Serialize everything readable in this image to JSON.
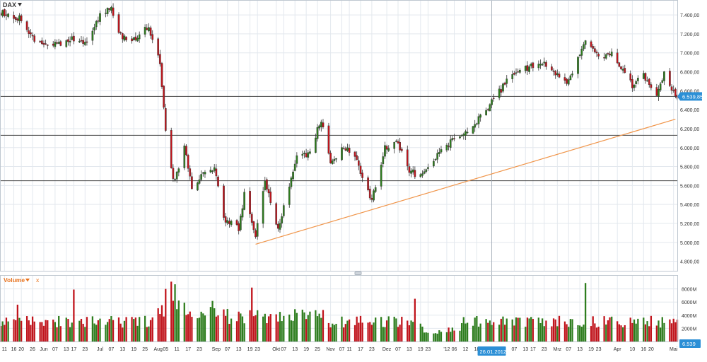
{
  "header": {
    "instrument": "DAX",
    "volume_label": "Volume",
    "volume_close": "x",
    "price_badge": "6.539,85",
    "volume_badge": "6.539",
    "date_badge": "26.01.2012"
  },
  "colors": {
    "up": "#2e7d1e",
    "down": "#c0141c",
    "grid": "#e3e8ee",
    "trend": "#f0954a",
    "badge": "#2b8fd6",
    "vol_label": "#e8731f",
    "hline": "#444444"
  },
  "chart_data": [
    {
      "type": "candlestick",
      "ylim": [
        4700,
        7550
      ],
      "yticks": [
        4800,
        5000,
        5200,
        5400,
        5600,
        5800,
        6000,
        6200,
        6400,
        6600,
        6800,
        7000,
        7200,
        7400
      ],
      "ytick_labels": [
        "4.800,00",
        "5.000,00",
        "5.200,00",
        "5.400,00",
        "5.600,00",
        "5.800,00",
        "6.000,00",
        "6.200,00",
        "6.400,00",
        "6.600,00",
        "6.800,00",
        "7.000,00",
        "7.200,00",
        "7.400,00"
      ],
      "horizontal_levels": [
        6540,
        6130,
        5650
      ],
      "trendline": {
        "from": {
          "date": "2011-09-22",
          "value": 4980
        },
        "to": {
          "date": "2012-05-03",
          "value": 6300
        }
      },
      "anchors": [
        {
          "date": "2011-05-09",
          "value": 7420
        },
        {
          "date": "2011-05-20",
          "value": 7360
        },
        {
          "date": "2011-05-27",
          "value": 7130
        },
        {
          "date": "2011-06-03",
          "value": 7110
        },
        {
          "date": "2011-06-10",
          "value": 7090
        },
        {
          "date": "2011-06-17",
          "value": 7150
        },
        {
          "date": "2011-06-24",
          "value": 7120
        },
        {
          "date": "2011-07-01",
          "value": 7400
        },
        {
          "date": "2011-07-07",
          "value": 7480
        },
        {
          "date": "2011-07-12",
          "value": 7180
        },
        {
          "date": "2011-07-19",
          "value": 7130
        },
        {
          "date": "2011-07-25",
          "value": 7300
        },
        {
          "date": "2011-07-29",
          "value": 7170
        },
        {
          "date": "2011-08-02",
          "value": 6900
        },
        {
          "date": "2011-08-05",
          "value": 6200
        },
        {
          "date": "2011-08-09",
          "value": 5650
        },
        {
          "date": "2011-08-12",
          "value": 5800
        },
        {
          "date": "2011-08-15",
          "value": 6050
        },
        {
          "date": "2011-08-19",
          "value": 5550
        },
        {
          "date": "2011-08-24",
          "value": 5700
        },
        {
          "date": "2011-08-31",
          "value": 5800
        },
        {
          "date": "2011-09-05",
          "value": 5250
        },
        {
          "date": "2011-09-09",
          "value": 5200
        },
        {
          "date": "2011-09-13",
          "value": 5150
        },
        {
          "date": "2011-09-16",
          "value": 5500
        },
        {
          "date": "2011-09-22",
          "value": 5050
        },
        {
          "date": "2011-09-27",
          "value": 5650
        },
        {
          "date": "2011-10-04",
          "value": 5150
        },
        {
          "date": "2011-10-10",
          "value": 5600
        },
        {
          "date": "2011-10-14",
          "value": 5900
        },
        {
          "date": "2011-10-21",
          "value": 5950
        },
        {
          "date": "2011-10-27",
          "value": 6300
        },
        {
          "date": "2011-11-01",
          "value": 5850
        },
        {
          "date": "2011-11-08",
          "value": 6000
        },
        {
          "date": "2011-11-14",
          "value": 5900
        },
        {
          "date": "2011-11-23",
          "value": 5450
        },
        {
          "date": "2011-11-30",
          "value": 6000
        },
        {
          "date": "2011-12-07",
          "value": 6050
        },
        {
          "date": "2011-12-13",
          "value": 5750
        },
        {
          "date": "2011-12-19",
          "value": 5700
        },
        {
          "date": "2011-12-27",
          "value": 5900
        },
        {
          "date": "2012-01-06",
          "value": 6100
        },
        {
          "date": "2012-01-16",
          "value": 6220
        },
        {
          "date": "2012-01-25",
          "value": 6450
        },
        {
          "date": "2012-02-03",
          "value": 6700
        },
        {
          "date": "2012-02-10",
          "value": 6800
        },
        {
          "date": "2012-02-20",
          "value": 6900
        },
        {
          "date": "2012-02-27",
          "value": 6850
        },
        {
          "date": "2012-03-06",
          "value": 6650
        },
        {
          "date": "2012-03-16",
          "value": 7150
        },
        {
          "date": "2012-03-23",
          "value": 6950
        },
        {
          "date": "2012-03-30",
          "value": 7000
        },
        {
          "date": "2012-04-10",
          "value": 6650
        },
        {
          "date": "2012-04-16",
          "value": 6750
        },
        {
          "date": "2012-04-23",
          "value": 6550
        },
        {
          "date": "2012-04-27",
          "value": 6800
        },
        {
          "date": "2012-05-03",
          "value": 6540
        }
      ]
    },
    {
      "type": "bar",
      "series_role": "volume",
      "ylim": [
        0,
        10000
      ],
      "yticks": [
        2000,
        4000,
        6000,
        8000
      ],
      "ytick_labels": [
        "2000M",
        "4000M",
        "6000M",
        "8000M"
      ],
      "spikes": [
        {
          "date": "2011-05-18",
          "value": 5600
        },
        {
          "date": "2011-06-17",
          "value": 7900
        },
        {
          "date": "2011-08-05",
          "value": 8000
        },
        {
          "date": "2011-08-08",
          "value": 9100
        },
        {
          "date": "2011-08-10",
          "value": 8700
        },
        {
          "date": "2011-09-20",
          "value": 8200
        },
        {
          "date": "2011-12-16",
          "value": 6500
        },
        {
          "date": "2012-03-16",
          "value": 8900
        }
      ]
    }
  ],
  "x_axis": {
    "start": "2011-05-09",
    "end": "2012-05-04",
    "ticks": [
      {
        "date": "2011-05-11",
        "label": "11"
      },
      {
        "date": "2011-05-16",
        "label": "16"
      },
      {
        "date": "2011-05-20",
        "label": "20"
      },
      {
        "date": "2011-05-26",
        "label": "26"
      },
      {
        "date": "2011-06-01",
        "label": "Jun"
      },
      {
        "date": "2011-06-07",
        "label": "07"
      },
      {
        "date": "2011-06-13",
        "label": "13"
      },
      {
        "date": "2011-06-17",
        "label": "17"
      },
      {
        "date": "2011-06-23",
        "label": "23"
      },
      {
        "date": "2011-07-01",
        "label": "Jul"
      },
      {
        "date": "2011-07-07",
        "label": "07"
      },
      {
        "date": "2011-07-13",
        "label": "13"
      },
      {
        "date": "2011-07-19",
        "label": "19"
      },
      {
        "date": "2011-07-25",
        "label": "25"
      },
      {
        "date": "2011-08-01",
        "label": "Aug"
      },
      {
        "date": "2011-08-05",
        "label": "05"
      },
      {
        "date": "2011-08-11",
        "label": "11"
      },
      {
        "date": "2011-08-17",
        "label": "17"
      },
      {
        "date": "2011-08-23",
        "label": "23"
      },
      {
        "date": "2011-09-01",
        "label": "Sep"
      },
      {
        "date": "2011-09-07",
        "label": "07"
      },
      {
        "date": "2011-09-13",
        "label": "13"
      },
      {
        "date": "2011-09-19",
        "label": "19"
      },
      {
        "date": "2011-09-23",
        "label": "23"
      },
      {
        "date": "2011-10-03",
        "label": "Okt"
      },
      {
        "date": "2011-10-07",
        "label": "07"
      },
      {
        "date": "2011-10-13",
        "label": "13"
      },
      {
        "date": "2011-10-19",
        "label": "19"
      },
      {
        "date": "2011-10-25",
        "label": "25"
      },
      {
        "date": "2011-11-01",
        "label": "Nov"
      },
      {
        "date": "2011-11-07",
        "label": "07"
      },
      {
        "date": "2011-11-11",
        "label": "11"
      },
      {
        "date": "2011-11-17",
        "label": "17"
      },
      {
        "date": "2011-11-23",
        "label": "23"
      },
      {
        "date": "2011-12-01",
        "label": "Dez"
      },
      {
        "date": "2011-12-07",
        "label": "07"
      },
      {
        "date": "2011-12-13",
        "label": "13"
      },
      {
        "date": "2011-12-19",
        "label": "19"
      },
      {
        "date": "2011-12-23",
        "label": "23"
      },
      {
        "date": "2012-01-02",
        "label": "'12"
      },
      {
        "date": "2012-01-06",
        "label": "06"
      },
      {
        "date": "2012-01-12",
        "label": "12"
      },
      {
        "date": "2012-01-18",
        "label": "18"
      },
      {
        "date": "2012-02-07",
        "label": "07"
      },
      {
        "date": "2012-02-13",
        "label": "13"
      },
      {
        "date": "2012-02-17",
        "label": "17"
      },
      {
        "date": "2012-02-23",
        "label": "23"
      },
      {
        "date": "2012-03-01",
        "label": "Mrz"
      },
      {
        "date": "2012-03-07",
        "label": "07"
      },
      {
        "date": "2012-03-13",
        "label": "13"
      },
      {
        "date": "2012-03-19",
        "label": "19"
      },
      {
        "date": "2012-03-23",
        "label": "23"
      },
      {
        "date": "2012-04-02",
        "label": "Apr"
      },
      {
        "date": "2012-04-10",
        "label": "10"
      },
      {
        "date": "2012-04-16",
        "label": "16"
      },
      {
        "date": "2012-04-20",
        "label": "20"
      },
      {
        "date": "2012-05-02",
        "label": "Mai"
      }
    ],
    "cursor_date": "2012-01-26"
  }
}
